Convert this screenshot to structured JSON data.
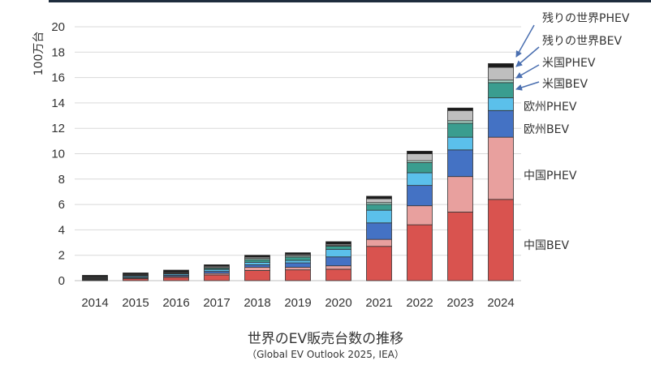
{
  "chart_data": {
    "type": "bar",
    "stacked": true,
    "title": "世界のEV販売台数の推移",
    "subtitle": "（Global EV Outlook 2025, IEA）",
    "ylabel": "100万台",
    "xlabel": "",
    "ylim": [
      0,
      20
    ],
    "yticks": [
      0,
      2,
      4,
      6,
      8,
      10,
      12,
      14,
      16,
      18,
      20
    ],
    "grid": true,
    "categories": [
      "2014",
      "2015",
      "2016",
      "2017",
      "2018",
      "2019",
      "2020",
      "2021",
      "2022",
      "2023",
      "2024"
    ],
    "series": [
      {
        "name": "中国BEV",
        "color": "#d9534f",
        "values": [
          0.05,
          0.15,
          0.25,
          0.45,
          0.8,
          0.85,
          0.9,
          2.7,
          4.4,
          5.4,
          6.4
        ]
      },
      {
        "name": "中国PHEV",
        "color": "#e8a09e",
        "values": [
          0.02,
          0.06,
          0.08,
          0.13,
          0.25,
          0.2,
          0.27,
          0.55,
          1.5,
          2.8,
          4.9
        ]
      },
      {
        "name": "欧州BEV",
        "color": "#4472c4",
        "values": [
          0.05,
          0.05,
          0.1,
          0.15,
          0.2,
          0.35,
          0.7,
          1.3,
          1.6,
          2.1,
          2.1
        ]
      },
      {
        "name": "欧州PHEV",
        "color": "#5bc0eb",
        "values": [
          0.05,
          0.1,
          0.1,
          0.15,
          0.2,
          0.2,
          0.6,
          1.0,
          1.0,
          1.0,
          1.0
        ]
      },
      {
        "name": "米国BEV",
        "color": "#3a9d8f",
        "values": [
          0.05,
          0.05,
          0.05,
          0.1,
          0.2,
          0.25,
          0.25,
          0.45,
          0.8,
          1.1,
          1.2
        ]
      },
      {
        "name": "米国PHEV",
        "color": "#a8d5c8",
        "values": [
          0.05,
          0.05,
          0.05,
          0.05,
          0.1,
          0.1,
          0.05,
          0.15,
          0.15,
          0.2,
          0.2
        ]
      },
      {
        "name": "残りの世界BEV",
        "color": "#bfbfbf",
        "values": [
          0.05,
          0.05,
          0.05,
          0.1,
          0.1,
          0.1,
          0.1,
          0.3,
          0.55,
          0.8,
          1.0
        ]
      },
      {
        "name": "残りの世界PHEV",
        "color": "#1a1a1a",
        "values": [
          0.1,
          0.1,
          0.15,
          0.12,
          0.15,
          0.15,
          0.2,
          0.2,
          0.2,
          0.2,
          0.3
        ]
      }
    ]
  }
}
